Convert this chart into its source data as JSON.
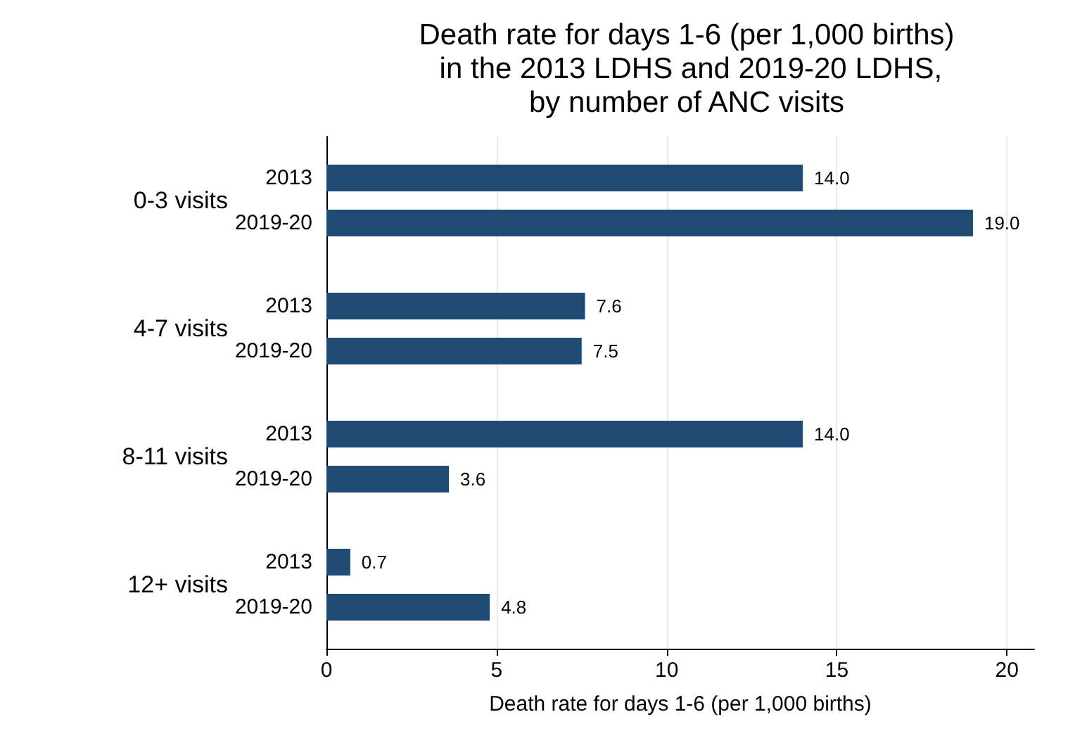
{
  "chart_data": {
    "type": "bar",
    "orientation": "horizontal",
    "title": "Death rate for days 1-6 (per 1,000 births)\n in the 2013 LDHS and 2019-20 LDHS,\nby number of ANC visits",
    "xlabel": "Death rate for days 1-6 (per 1,000 births)",
    "categories": [
      "0-3 visits",
      "4-7 visits",
      "8-11 visits",
      "12+ visits"
    ],
    "series": [
      {
        "name": "2013",
        "color": "#1f4a73",
        "values": [
          14.0,
          7.6,
          14.0,
          0.7
        ],
        "value_labels": [
          "14.0",
          "7.6",
          "14.0",
          "0.7"
        ]
      },
      {
        "name": "2019-20",
        "color": "#1f4a73",
        "values": [
          19.0,
          7.5,
          3.6,
          4.8
        ],
        "value_labels": [
          "19.0",
          "7.5",
          "3.6",
          "4.8"
        ]
      }
    ],
    "xlim": [
      0,
      20.8
    ],
    "xticks": [
      0,
      5,
      10,
      15,
      20
    ],
    "grid": "x",
    "legend": false
  }
}
